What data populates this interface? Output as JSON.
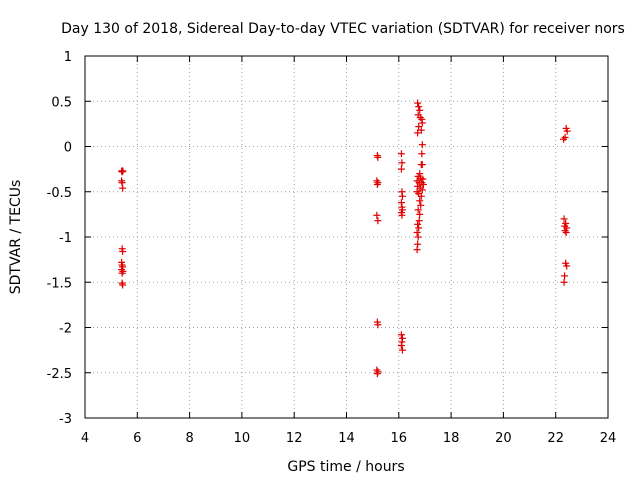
{
  "chart_data": {
    "type": "scatter",
    "title": "Day 130 of 2018, Sidereal Day-to-day VTEC variation (SDTVAR) for receiver nors",
    "xlabel": "GPS time / hours",
    "ylabel": "SDTVAR / TECUs",
    "xlim": [
      4,
      24
    ],
    "ylim": [
      -3,
      1
    ],
    "xticks": [
      4,
      6,
      8,
      10,
      12,
      14,
      16,
      18,
      20,
      22,
      24
    ],
    "yticks": [
      -3,
      -2.5,
      -2,
      -1.5,
      -1,
      -0.5,
      0,
      0.5,
      1
    ],
    "grid": true,
    "marker_color": "#e00000",
    "series": [
      {
        "name": "SDTVAR",
        "points": [
          [
            5.4,
            -0.27
          ],
          [
            5.45,
            -0.27
          ],
          [
            5.42,
            -0.28
          ],
          [
            5.4,
            -0.38
          ],
          [
            5.42,
            -0.4
          ],
          [
            5.44,
            -0.46
          ],
          [
            5.42,
            -1.13
          ],
          [
            5.44,
            -1.16
          ],
          [
            5.4,
            -1.28
          ],
          [
            5.42,
            -1.31
          ],
          [
            5.44,
            -1.33
          ],
          [
            5.4,
            -1.36
          ],
          [
            5.45,
            -1.38
          ],
          [
            5.42,
            -1.4
          ],
          [
            5.42,
            -1.51
          ],
          [
            5.44,
            -1.53
          ],
          [
            15.18,
            -0.1
          ],
          [
            15.2,
            -0.12
          ],
          [
            15.16,
            -0.38
          ],
          [
            15.2,
            -0.4
          ],
          [
            15.18,
            -0.42
          ],
          [
            15.16,
            -0.76
          ],
          [
            15.2,
            -0.82
          ],
          [
            15.18,
            -1.94
          ],
          [
            15.2,
            -1.97
          ],
          [
            15.16,
            -2.47
          ],
          [
            15.2,
            -2.49
          ],
          [
            15.18,
            -2.51
          ],
          [
            16.1,
            -0.08
          ],
          [
            16.12,
            -0.18
          ],
          [
            16.1,
            -0.25
          ],
          [
            16.12,
            -0.5
          ],
          [
            16.14,
            -0.55
          ],
          [
            16.1,
            -0.62
          ],
          [
            16.12,
            -0.67
          ],
          [
            16.14,
            -0.7
          ],
          [
            16.1,
            -0.73
          ],
          [
            16.12,
            -0.76
          ],
          [
            16.1,
            -2.08
          ],
          [
            16.14,
            -2.12
          ],
          [
            16.12,
            -2.16
          ],
          [
            16.1,
            -2.2
          ],
          [
            16.14,
            -2.25
          ],
          [
            16.72,
            0.48
          ],
          [
            16.76,
            0.44
          ],
          [
            16.8,
            0.4
          ],
          [
            16.74,
            0.35
          ],
          [
            16.82,
            0.32
          ],
          [
            16.88,
            0.3
          ],
          [
            16.9,
            0.26
          ],
          [
            16.76,
            0.22
          ],
          [
            16.86,
            0.18
          ],
          [
            16.72,
            0.15
          ],
          [
            16.9,
            0.02
          ],
          [
            16.88,
            -0.08
          ],
          [
            16.86,
            -0.2
          ],
          [
            16.9,
            -0.2
          ],
          [
            16.8,
            -0.3
          ],
          [
            16.74,
            -0.33
          ],
          [
            16.84,
            -0.35
          ],
          [
            16.92,
            -0.36
          ],
          [
            16.7,
            -0.38
          ],
          [
            16.78,
            -0.4
          ],
          [
            16.88,
            -0.4
          ],
          [
            16.94,
            -0.42
          ],
          [
            16.72,
            -0.44
          ],
          [
            16.82,
            -0.46
          ],
          [
            16.9,
            -0.48
          ],
          [
            16.7,
            -0.5
          ],
          [
            16.76,
            -0.52
          ],
          [
            16.86,
            -0.55
          ],
          [
            16.8,
            -0.6
          ],
          [
            16.84,
            -0.65
          ],
          [
            16.74,
            -0.7
          ],
          [
            16.8,
            -0.75
          ],
          [
            16.78,
            -0.82
          ],
          [
            16.72,
            -0.86
          ],
          [
            16.76,
            -0.9
          ],
          [
            16.7,
            -0.95
          ],
          [
            16.74,
            -1.0
          ],
          [
            16.72,
            -1.08
          ],
          [
            16.7,
            -1.14
          ],
          [
            22.4,
            0.2
          ],
          [
            22.44,
            0.17
          ],
          [
            22.36,
            0.1
          ],
          [
            22.3,
            0.08
          ],
          [
            22.32,
            -0.8
          ],
          [
            22.38,
            -0.85
          ],
          [
            22.34,
            -0.88
          ],
          [
            22.42,
            -0.9
          ],
          [
            22.36,
            -0.93
          ],
          [
            22.4,
            -0.95
          ],
          [
            22.38,
            -1.29
          ],
          [
            22.42,
            -1.32
          ],
          [
            22.34,
            -1.43
          ],
          [
            22.32,
            -1.5
          ]
        ]
      }
    ]
  }
}
